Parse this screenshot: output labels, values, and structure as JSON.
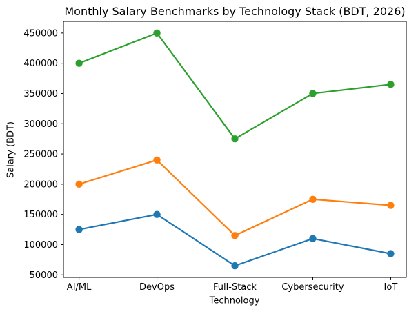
{
  "chart_data": {
    "type": "line",
    "title": "Monthly Salary Benchmarks by Technology Stack (BDT, 2026)",
    "xlabel": "Technology",
    "ylabel": "Salary (BDT)",
    "categories": [
      "AI/ML",
      "DevOps",
      "Full-Stack",
      "Cybersecurity",
      "IoT"
    ],
    "series": [
      {
        "color": "#1f77b4",
        "marker": "circle",
        "values": [
          125000,
          150000,
          65000,
          110000,
          85000
        ]
      },
      {
        "color": "#ff7f0e",
        "marker": "circle",
        "values": [
          200000,
          240000,
          115000,
          175000,
          165000
        ]
      },
      {
        "color": "#2ca02c",
        "marker": "circle",
        "values": [
          400000,
          450000,
          275000,
          350000,
          365000
        ]
      }
    ],
    "yticks": [
      50000,
      100000,
      150000,
      200000,
      250000,
      300000,
      350000,
      400000,
      450000
    ],
    "ylim": [
      45750,
      469250
    ],
    "grid": false,
    "legend": "none",
    "axis_color": "#000000",
    "background_color": "#ffffff"
  }
}
